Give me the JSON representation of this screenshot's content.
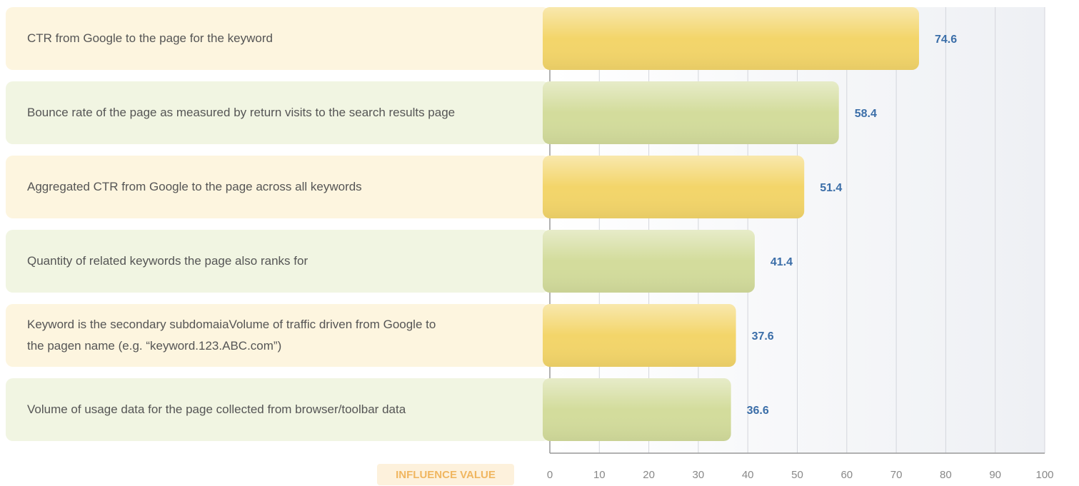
{
  "chart_data": {
    "type": "bar",
    "categories": [
      "CTR from Google to the page for the keyword",
      "Bounce rate of the page as measured by return visits to the search results page",
      "Aggregated CTR from Google to the page across all keywords",
      "Quantity of related keywords the page also ranks for",
      "Keyword is the secondary subdomaiaVolume of traffic driven from Google to the pagen name (e.g. “keyword.123.ABC.com”)",
      "Volume of usage data for the page collected from browser/toolbar data"
    ],
    "values": [
      74.6,
      58.4,
      51.4,
      41.4,
      37.6,
      36.6
    ],
    "colors": [
      "#f3d56a",
      "#d3dc9c",
      "#f3d56a",
      "#d3dc9c",
      "#f3d56a",
      "#d3dc9c"
    ],
    "xlabel": "INFLUENCE VALUE",
    "xlim": [
      0,
      100
    ],
    "xticks": [
      0,
      10,
      20,
      30,
      40,
      50,
      60,
      70,
      80,
      90,
      100
    ],
    "grid": true
  }
}
